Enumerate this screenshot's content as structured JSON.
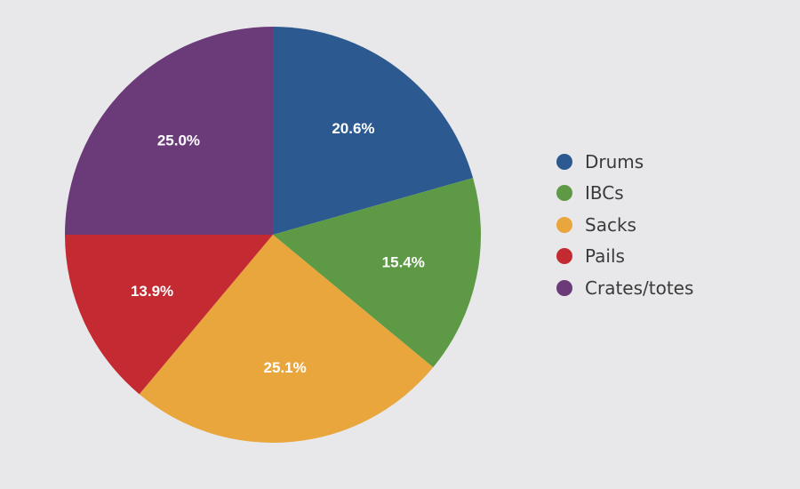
{
  "chart_data": {
    "type": "pie",
    "slices": [
      {
        "label": "Drums",
        "value": 20.6,
        "display": "20.6%",
        "color": "#2c5a90"
      },
      {
        "label": "IBCs",
        "value": 15.4,
        "display": "15.4%",
        "color": "#5e9a45"
      },
      {
        "label": "Sacks",
        "value": 25.1,
        "display": "25.1%",
        "color": "#e8a63d"
      },
      {
        "label": "Pails",
        "value": 13.9,
        "display": "13.9%",
        "color": "#c32a31"
      },
      {
        "label": "Crates/totes",
        "value": 25.0,
        "display": "25.0%",
        "color": "#6b3a78"
      }
    ],
    "start": "12 o'clock",
    "direction": "clockwise",
    "legend_position": "right"
  }
}
